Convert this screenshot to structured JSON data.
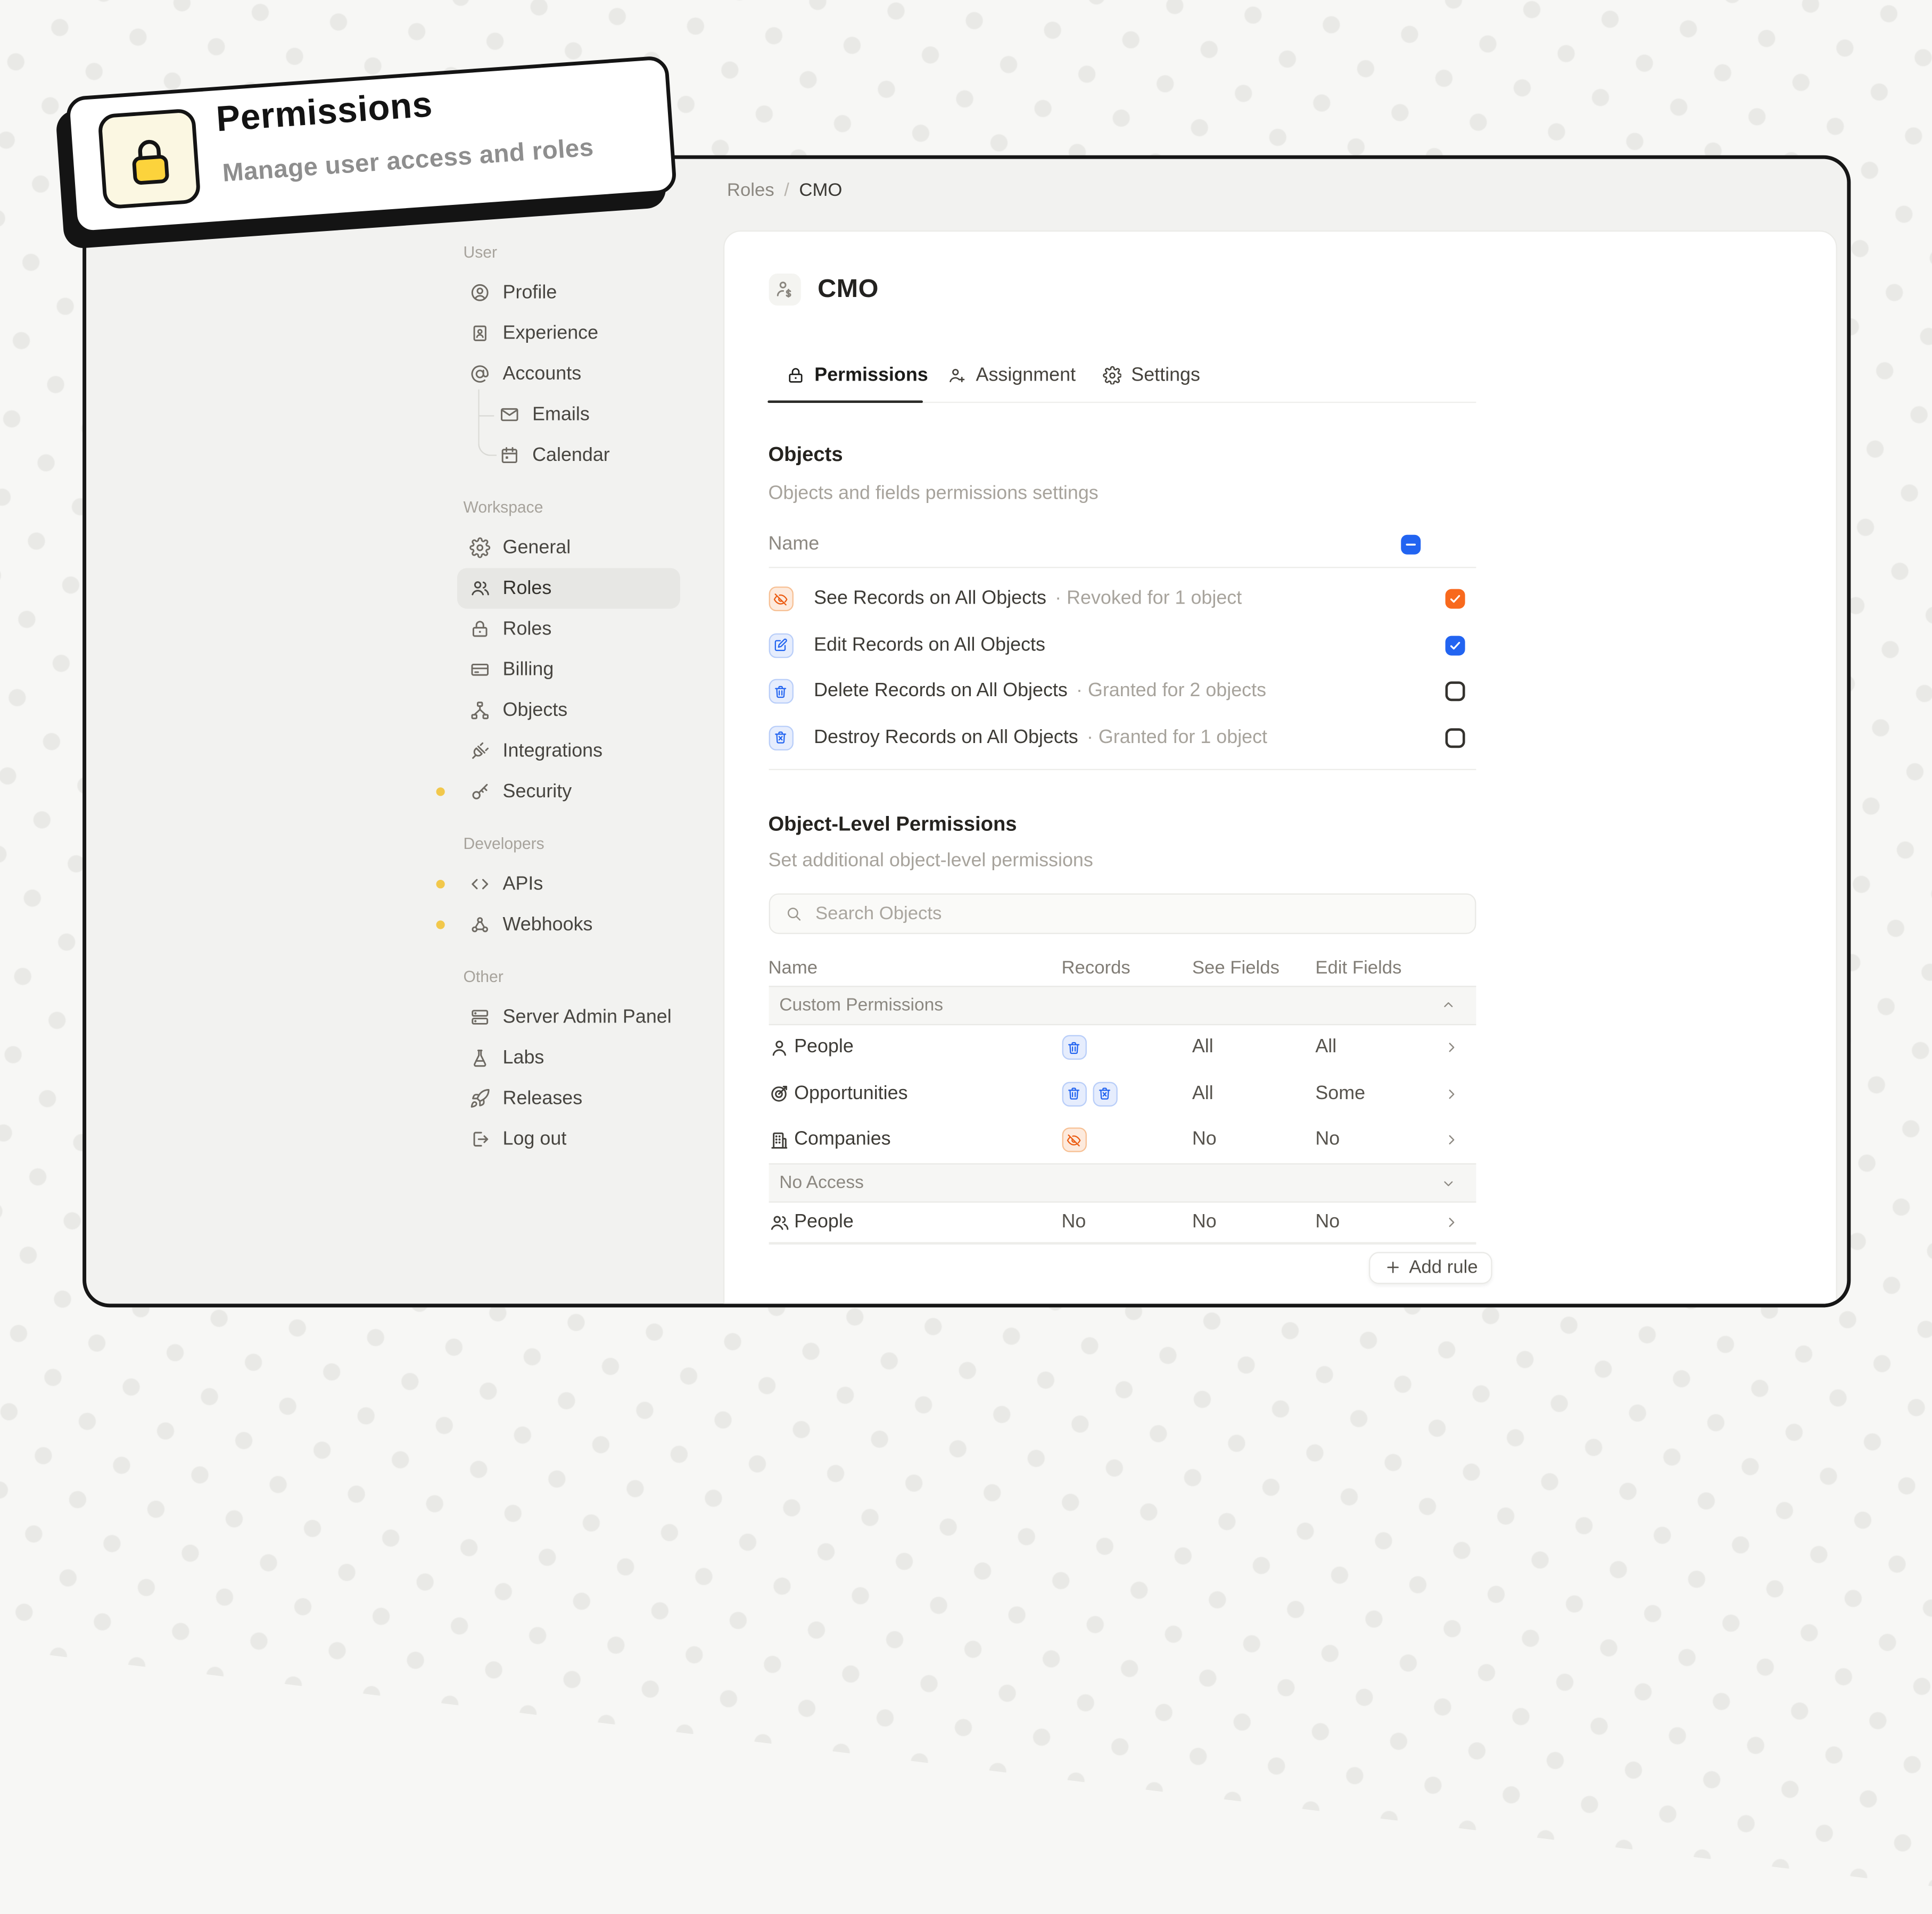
{
  "badge": {
    "icon": "lock",
    "title": "Permissions",
    "subtitle": "Manage user access and roles"
  },
  "breadcrumb": {
    "parent": "Roles",
    "separator": "/",
    "current": "CMO"
  },
  "page": {
    "title": "CMO",
    "title_icon": "user-dollar"
  },
  "sidebar": {
    "sections": [
      {
        "label": "User",
        "items": [
          {
            "icon": "circle-user",
            "label": "Profile"
          },
          {
            "icon": "id-badge",
            "label": "Experience"
          },
          {
            "icon": "at-sign",
            "label": "Accounts"
          },
          {
            "icon": "mail",
            "label": "Emails",
            "child": true
          },
          {
            "icon": "calendar",
            "label": "Calendar",
            "child": true
          }
        ]
      },
      {
        "label": "Workspace",
        "items": [
          {
            "icon": "gear",
            "label": "General"
          },
          {
            "icon": "users",
            "label": "Roles",
            "selected": true
          },
          {
            "icon": "lock",
            "label": "Roles"
          },
          {
            "icon": "credit-card",
            "label": "Billing"
          },
          {
            "icon": "hierarchy",
            "label": "Objects"
          },
          {
            "icon": "plug",
            "label": "Integrations"
          },
          {
            "icon": "key",
            "label": "Security",
            "dot": true
          }
        ]
      },
      {
        "label": "Developers",
        "items": [
          {
            "icon": "code",
            "label": "APIs",
            "dot": true
          },
          {
            "icon": "webhook",
            "label": "Webhooks",
            "dot": true
          }
        ]
      },
      {
        "label": "Other",
        "items": [
          {
            "icon": "server",
            "label": "Server Admin Panel"
          },
          {
            "icon": "flask",
            "label": "Labs"
          },
          {
            "icon": "rocket",
            "label": "Releases"
          },
          {
            "icon": "logout",
            "label": "Log out"
          }
        ]
      }
    ]
  },
  "tabs": [
    {
      "icon": "lock",
      "label": "Permissions",
      "active": true
    },
    {
      "icon": "user-plus",
      "label": "Assignment",
      "active": false
    },
    {
      "icon": "gear",
      "label": "Settings",
      "active": false
    }
  ],
  "objects_section": {
    "title": "Objects",
    "subtitle": "Objects and fields permissions settings",
    "name_header": "Name",
    "header_checkbox": "indeterminate-blue",
    "rows": [
      {
        "icon": "eye-off",
        "tone": "orange",
        "label": "See Records on All Objects",
        "note": "· Revoked for 1 object",
        "checkbox": "checked-orange"
      },
      {
        "icon": "edit",
        "tone": "blue",
        "label": "Edit Records on All Objects",
        "note": "",
        "checkbox": "checked-blue"
      },
      {
        "icon": "trash",
        "tone": "blue",
        "label": "Delete Records on All Objects",
        "note": "· Granted for 2 objects",
        "checkbox": "unchecked"
      },
      {
        "icon": "trash-x",
        "tone": "blue",
        "label": "Destroy Records on All Objects",
        "note": "· Granted for 1 object",
        "checkbox": "unchecked"
      }
    ]
  },
  "object_level_section": {
    "title": "Object-Level Permissions",
    "subtitle": "Set additional object-level permissions",
    "search_placeholder": "Search Objects",
    "columns": [
      "Name",
      "Records",
      "See Fields",
      "Edit Fields"
    ],
    "groups": [
      {
        "label": "Custom Permissions",
        "chevron": "up",
        "rows": [
          {
            "icon": "user",
            "name": "People",
            "records_chips": [
              {
                "icon": "trash",
                "tone": "blue"
              }
            ],
            "records_text": "",
            "see": "All",
            "edit": "All"
          },
          {
            "icon": "target",
            "name": "Opportunities",
            "records_chips": [
              {
                "icon": "trash",
                "tone": "blue"
              },
              {
                "icon": "trash-x",
                "tone": "blue"
              }
            ],
            "records_text": "",
            "see": "All",
            "edit": "Some"
          },
          {
            "icon": "building",
            "name": "Companies",
            "records_chips": [
              {
                "icon": "eye-off",
                "tone": "orange"
              }
            ],
            "records_text": "",
            "see": "No",
            "edit": "No"
          }
        ]
      },
      {
        "label": "No Access",
        "chevron": "down",
        "rows": [
          {
            "icon": "users",
            "name": "People",
            "records_chips": [],
            "records_text": "No",
            "see": "No",
            "edit": "No"
          }
        ]
      }
    ],
    "add_button": {
      "icon": "plus",
      "label": "Add rule"
    }
  },
  "colors": {
    "accent_blue": "#2264f1",
    "accent_orange": "#f8691d",
    "chip_blue_bg": "#e6edfd",
    "chip_orange_bg": "#fdeadd",
    "notification_dot": "#f2c84b",
    "badge_lock_yellow": "#fcd33c",
    "window_border": "#161616",
    "sidebar_bg": "#f2f2f0",
    "card_bg": "#ffffff"
  }
}
